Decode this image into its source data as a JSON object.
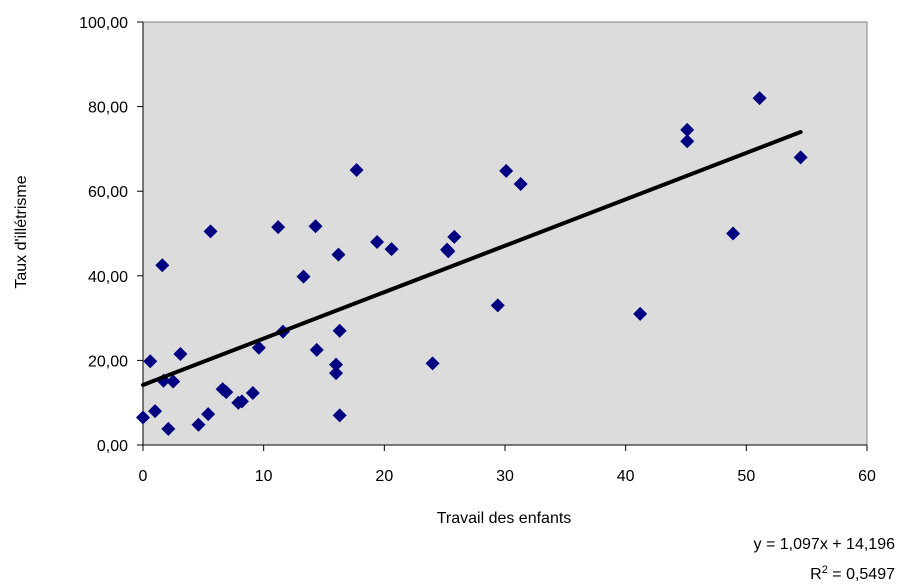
{
  "chart_data": {
    "type": "scatter",
    "xlabel": "Travail des enfants",
    "ylabel": "Taux d'illétrisme",
    "xlim": [
      0,
      60
    ],
    "ylim": [
      0,
      100
    ],
    "x_ticks": [
      "0",
      "10",
      "20",
      "30",
      "40",
      "50",
      "60"
    ],
    "y_ticks": [
      "0,00",
      "20,00",
      "40,00",
      "60,00",
      "80,00",
      "100,00"
    ],
    "grid": false,
    "plot_background": "#dcdcdc",
    "marker_color": "#000080",
    "marker": "diamond",
    "trendline": {
      "slope": 1.097,
      "intercept": 14.196,
      "x_range": [
        0,
        54.5
      ],
      "color": "#000000"
    },
    "equation_label": "y = 1,097x + 14,196",
    "r2_prefix": "R",
    "r2_sup": "2",
    "r2_value": " = 0,5497",
    "points": [
      [
        0.0,
        6.5
      ],
      [
        0.6,
        19.8
      ],
      [
        1.0,
        8.0
      ],
      [
        1.6,
        42.5
      ],
      [
        1.7,
        15.2
      ],
      [
        2.1,
        3.8
      ],
      [
        2.5,
        15.0
      ],
      [
        3.1,
        21.5
      ],
      [
        4.6,
        4.8
      ],
      [
        5.4,
        7.3
      ],
      [
        5.6,
        50.5
      ],
      [
        6.6,
        13.2
      ],
      [
        6.9,
        12.5
      ],
      [
        7.9,
        10.0
      ],
      [
        8.2,
        10.3
      ],
      [
        9.1,
        12.3
      ],
      [
        9.6,
        23.0
      ],
      [
        11.2,
        51.5
      ],
      [
        11.6,
        26.8
      ],
      [
        13.3,
        39.8
      ],
      [
        14.3,
        51.7
      ],
      [
        14.4,
        22.5
      ],
      [
        16.0,
        17.0
      ],
      [
        16.0,
        19.0
      ],
      [
        16.2,
        45.0
      ],
      [
        16.3,
        7.0
      ],
      [
        16.3,
        27.0
      ],
      [
        17.7,
        65.0
      ],
      [
        19.4,
        48.0
      ],
      [
        20.6,
        46.3
      ],
      [
        24.0,
        19.3
      ],
      [
        25.2,
        46.2
      ],
      [
        25.3,
        45.8
      ],
      [
        25.8,
        49.2
      ],
      [
        29.4,
        33.0
      ],
      [
        30.1,
        64.8
      ],
      [
        31.3,
        61.7
      ],
      [
        41.2,
        31.0
      ],
      [
        45.1,
        74.5
      ],
      [
        45.1,
        71.8
      ],
      [
        48.9,
        50.0
      ],
      [
        51.1,
        82.0
      ],
      [
        54.5,
        68.0
      ]
    ]
  }
}
